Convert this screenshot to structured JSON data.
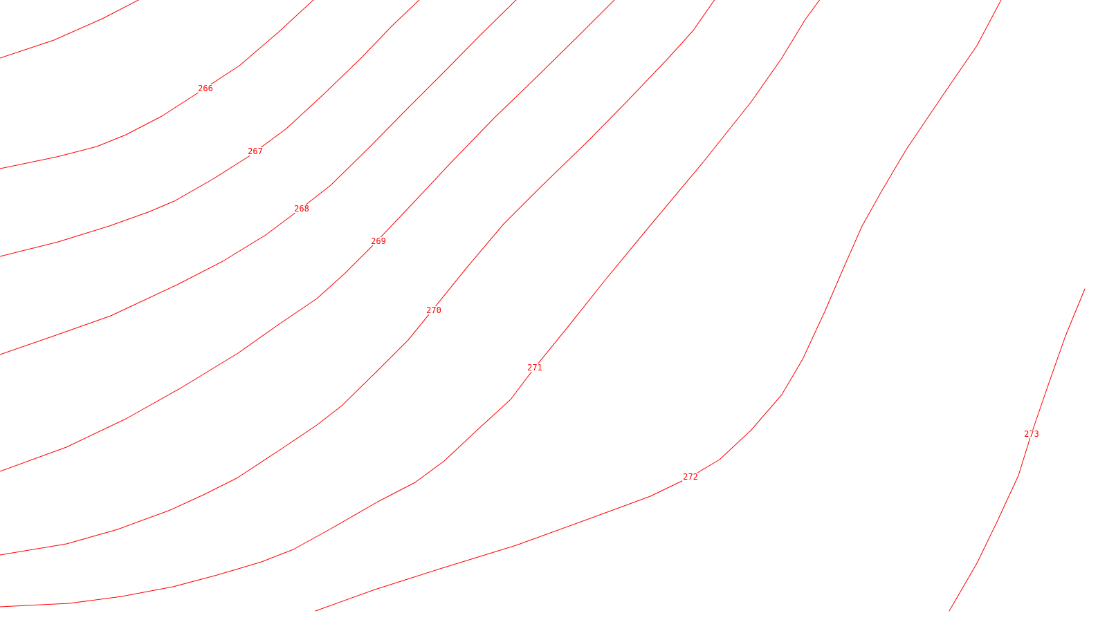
{
  "map": {
    "background": "#ffffff",
    "line_color": "#ff0000",
    "contours": [
      {
        "id": "c266",
        "elevation": "266"
      },
      {
        "id": "c267",
        "elevation": "267"
      },
      {
        "id": "c268",
        "elevation": "268"
      },
      {
        "id": "c269",
        "elevation": "269"
      },
      {
        "id": "c270",
        "elevation": "270"
      },
      {
        "id": "c271",
        "elevation": "271"
      },
      {
        "id": "c272",
        "elevation": "272"
      },
      {
        "id": "c273",
        "elevation": "273"
      }
    ]
  }
}
